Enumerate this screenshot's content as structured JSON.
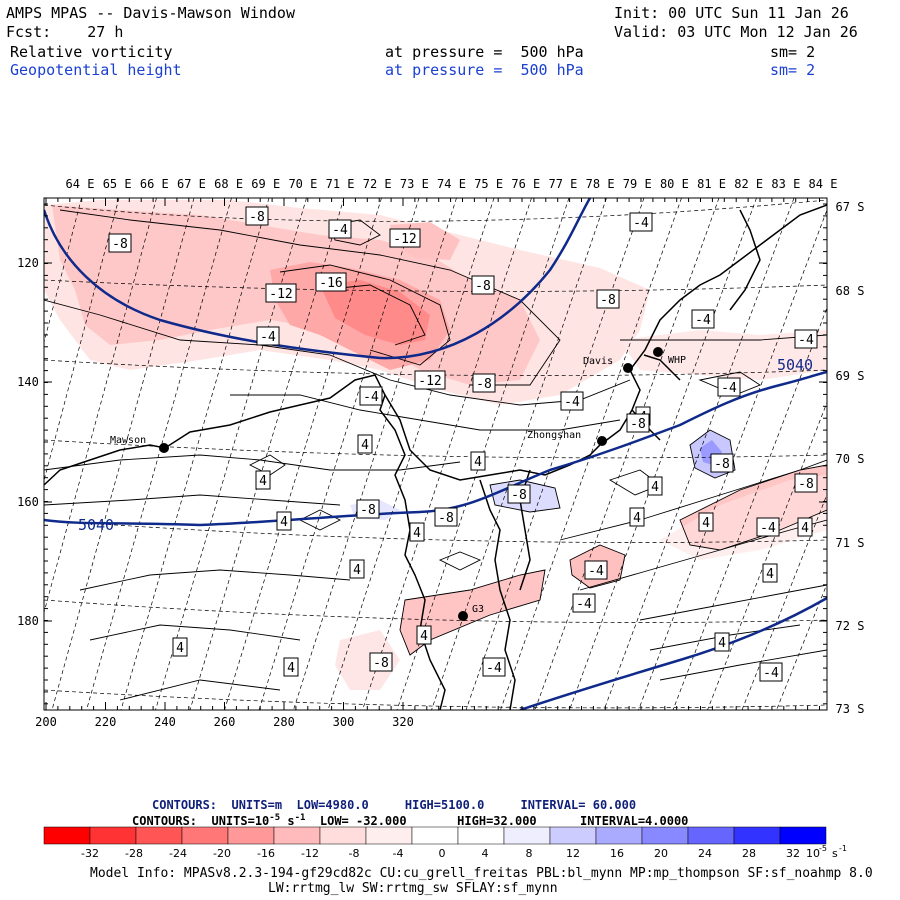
{
  "header": {
    "title": "AMPS MPAS -- Davis-Mawson Window",
    "init": "Init: 00 UTC Sun 11 Jan 26",
    "fcst": "Fcst:    27 h",
    "valid": "Valid: 03 UTC Mon 12 Jan 26",
    "field1": {
      "name": "Relative vorticity",
      "pressure": "at pressure =  500 hPa",
      "sm": "sm= 2"
    },
    "field2": {
      "name": "Geopotential height",
      "pressure": "at pressure =  500 hPa",
      "sm": "sm= 2"
    }
  },
  "map": {
    "top_lon_labels": [
      "64 E",
      "65 E",
      "66 E",
      "67 E",
      "68 E",
      "69 E",
      "70 E",
      "71 E",
      "72 E",
      "73 E",
      "74 E",
      "75 E",
      "76 E",
      "77 E",
      "78 E",
      "79 E",
      "80 E",
      "81 E",
      "82 E",
      "83 E",
      "84 E"
    ],
    "right_lat_labels": [
      "67 S",
      "68 S",
      "69 S",
      "70 S",
      "71 S",
      "72 S",
      "73 S"
    ],
    "left_y_labels": [
      "120",
      "140",
      "160",
      "180"
    ],
    "bottom_x_labels": [
      "200",
      "220",
      "240",
      "260",
      "280",
      "300",
      "320"
    ],
    "stations": [
      {
        "name": "Mawson",
        "label": "Mawson"
      },
      {
        "name": "Davis",
        "label": "Davis"
      },
      {
        "name": "WHP",
        "label": "WHP"
      },
      {
        "name": "Zhongshan",
        "label": "Zhongshan"
      },
      {
        "name": "G3",
        "label": "G3"
      }
    ],
    "height_contour_labels": [
      "5040",
      "5040"
    ],
    "vort_labels": [
      "-8",
      "-4",
      "-8",
      "-12",
      "-16",
      "-12",
      "-8",
      "-8",
      "-4",
      "-4",
      "-4",
      "-12",
      "-8",
      "-4",
      "-4",
      "-4",
      "-4",
      "4",
      "4",
      "4",
      "4",
      "-8",
      "-8",
      "-8",
      "4",
      "4",
      "4",
      "-8",
      "-8",
      "-4",
      "-4",
      "4",
      "4",
      "4",
      "-4",
      "-8",
      "4",
      "4",
      "4",
      "-4",
      "4",
      "4",
      "4",
      "-8",
      "-4",
      "4"
    ]
  },
  "footer": {
    "contours1": {
      "prefix": "CONTOURS:  UNITS=m  LOW=",
      "low": "4980.0",
      "high_label": "HIGH=",
      "high": "5100.0",
      "interval_label": "INTERVAL=",
      "interval": "60.000"
    },
    "contours2": {
      "prefix": "CONTOURS:  UNITS=10",
      "exp": "-5",
      "suffix": " s",
      "exp2": "-1",
      "low_label": "LOW=",
      "low": "-32.000",
      "high_label": "HIGH=",
      "high": "32.000",
      "interval_label": "INTERVAL=",
      "interval": "4.0000"
    },
    "colorbar_labels": [
      "-32",
      "-28",
      "-24",
      "-20",
      "-16",
      "-12",
      "-8",
      "-4",
      "0",
      "4",
      "8",
      "12",
      "16",
      "20",
      "24",
      "28",
      "32"
    ],
    "colorbar_unit": "10",
    "colorbar_unit_exp": "-5",
    "colorbar_unit_s": "s",
    "colorbar_unit_exp2": "-1",
    "colorbar_colors": [
      "#ff0000",
      "#ff3333",
      "#ff5555",
      "#ff7777",
      "#ff9999",
      "#ffbbbb",
      "#ffdddd",
      "#ffeeee",
      "#ffffff",
      "#ffffff",
      "#eeeeff",
      "#ccccff",
      "#aaaaff",
      "#8888ff",
      "#6666ff",
      "#3333ff",
      "#0000ff"
    ],
    "model_info_1": "Model Info: MPASv8.2.3-194-gf29cd82c CU:cu_grell_freitas PBL:bl_mynn MP:mp_thompson SF:sf_noahmp 8.0",
    "model_info_2": "LW:rrtmg_lw SW:rrtmg_sw SFLAY:sf_mynn"
  }
}
